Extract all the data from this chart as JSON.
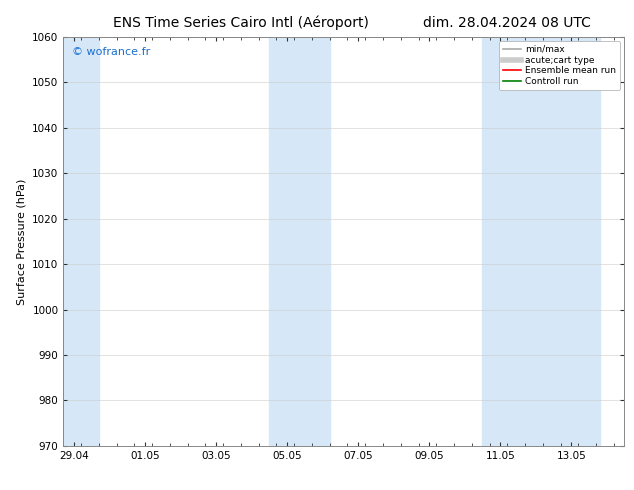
{
  "title_left": "ENS Time Series Cairo Intl (Aéroport)",
  "title_right": "dim. 28.04.2024 08 UTC",
  "ylabel": "Surface Pressure (hPa)",
  "ylim": [
    970,
    1060
  ],
  "yticks": [
    970,
    980,
    990,
    1000,
    1010,
    1020,
    1030,
    1040,
    1050,
    1060
  ],
  "x_tick_labels": [
    "29.04",
    "01.05",
    "03.05",
    "05.05",
    "07.05",
    "09.05",
    "11.05",
    "13.05"
  ],
  "x_tick_positions": [
    0,
    2,
    4,
    6,
    8,
    10,
    12,
    14
  ],
  "xlim": [
    -0.3,
    15.5
  ],
  "shaded_bands": [
    {
      "x_start": -0.3,
      "x_end": 0.7,
      "color": "#d6e8f7"
    },
    {
      "x_start": 5.5,
      "x_end": 7.2,
      "color": "#d6e8f7"
    },
    {
      "x_start": 11.5,
      "x_end": 14.8,
      "color": "#d6e8f7"
    }
  ],
  "watermark": "© wofrance.fr",
  "watermark_color": "#1a6fce",
  "background_color": "#ffffff",
  "plot_bg_color": "#ffffff",
  "legend_entries": [
    {
      "label": "min/max",
      "color": "#aaaaaa",
      "lw": 1.2,
      "style": "solid"
    },
    {
      "label": "acute;cart type",
      "color": "#cccccc",
      "lw": 4,
      "style": "solid"
    },
    {
      "label": "Ensemble mean run",
      "color": "#ff0000",
      "lw": 1.2,
      "style": "solid"
    },
    {
      "label": "Controll run",
      "color": "#008000",
      "lw": 1.2,
      "style": "solid"
    }
  ],
  "title_fontsize": 10,
  "tick_fontsize": 7.5,
  "ylabel_fontsize": 8,
  "watermark_fontsize": 8,
  "legend_fontsize": 6.5,
  "spine_color": "#888888",
  "tick_color": "#333333"
}
